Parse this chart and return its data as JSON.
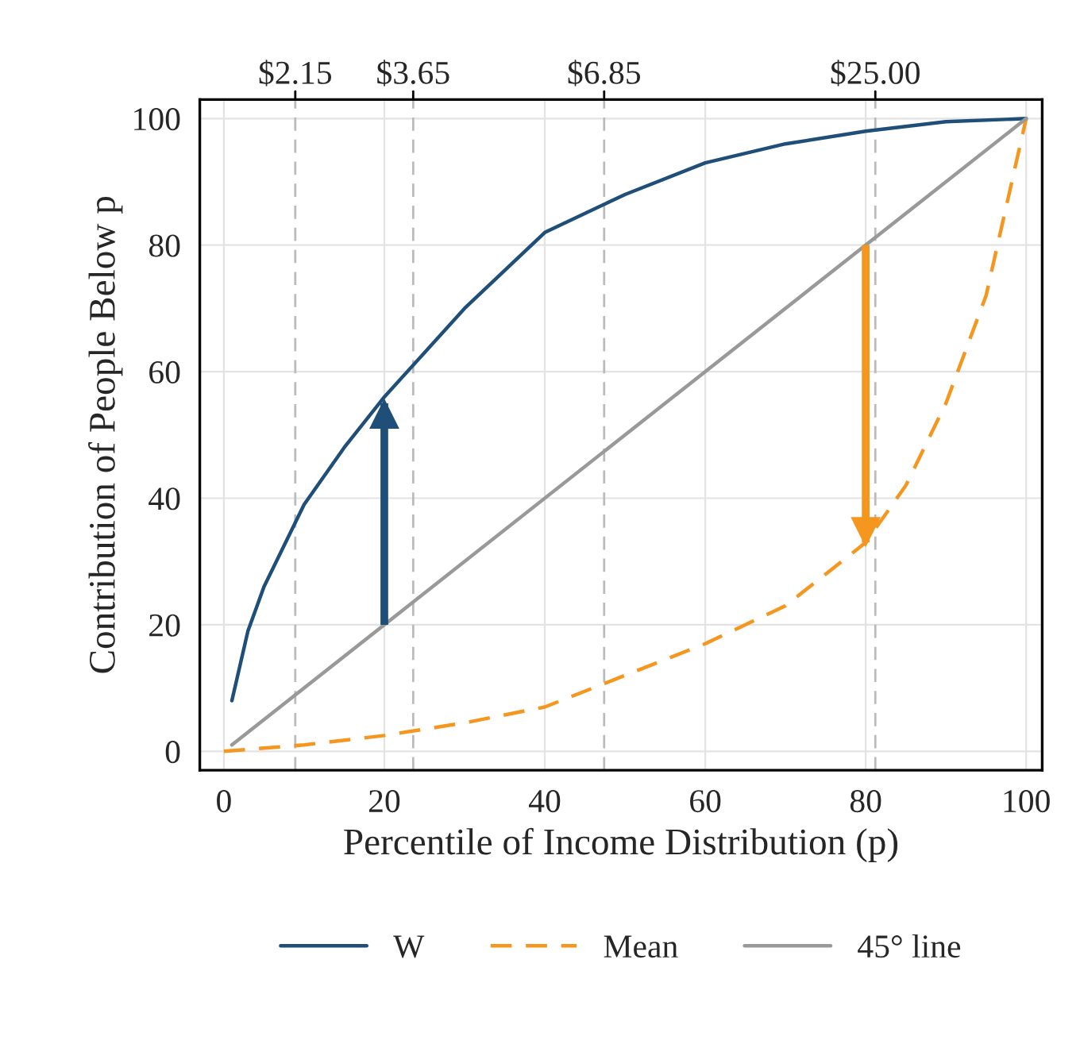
{
  "chart_data": {
    "type": "line",
    "xlabel": "Percentile of Income Distribution (p)",
    "ylabel": "Contribution of People Below p",
    "xlim": [
      -3,
      102
    ],
    "ylim": [
      -3,
      103
    ],
    "xticks": [
      0,
      20,
      40,
      60,
      80,
      100
    ],
    "yticks": [
      0,
      20,
      40,
      60,
      80,
      100
    ],
    "grid": true,
    "legend": "bottom",
    "series": [
      {
        "name": "W",
        "color": "#1f4e79",
        "line_style": "solid",
        "x": [
          1,
          3,
          5,
          10,
          15,
          20,
          30,
          40,
          50,
          60,
          70,
          80,
          90,
          100
        ],
        "values": [
          8,
          19,
          26,
          39,
          48,
          56,
          70,
          82,
          88,
          93,
          96,
          98,
          99.5,
          100
        ]
      },
      {
        "name": "Mean",
        "color": "#f5961e",
        "line_style": "dashed",
        "x": [
          0,
          10,
          20,
          30,
          40,
          50,
          60,
          70,
          80,
          85,
          90,
          95,
          100
        ],
        "values": [
          0,
          1,
          2.5,
          4.5,
          7,
          12,
          17,
          23,
          33,
          42,
          55,
          72,
          100
        ]
      },
      {
        "name": "45° line",
        "color": "#999999",
        "line_style": "solid",
        "x": [
          1,
          100
        ],
        "values": [
          1,
          100
        ]
      },
      {
        "color": "#1f4e79",
        "line_style": "solid",
        "x": [
          20,
          20
        ],
        "values": [
          20,
          55
        ]
      },
      {
        "color": "#f5961e",
        "line_style": "solid",
        "x": [
          80,
          80
        ],
        "values": [
          80,
          33
        ]
      }
    ],
    "ref_lines": [
      {
        "axis": "x",
        "value": 8.9,
        "color": "#bbbbbb",
        "line_style": "dashed"
      },
      {
        "axis": "x",
        "value": 23.6,
        "color": "#bbbbbb",
        "line_style": "dashed"
      },
      {
        "axis": "x",
        "value": 47.4,
        "color": "#bbbbbb",
        "line_style": "dashed"
      },
      {
        "axis": "x",
        "value": 81.2,
        "color": "#bbbbbb",
        "line_style": "dashed"
      }
    ],
    "annotations": [
      {
        "text": "$2.15",
        "x": 8.9,
        "y": 103
      },
      {
        "text": "$3.65",
        "x": 23.6,
        "y": 103
      },
      {
        "text": "$6.85",
        "x": 47.4,
        "y": 103
      },
      {
        "text": "$25.00",
        "x": 81.2,
        "y": 103
      }
    ]
  }
}
